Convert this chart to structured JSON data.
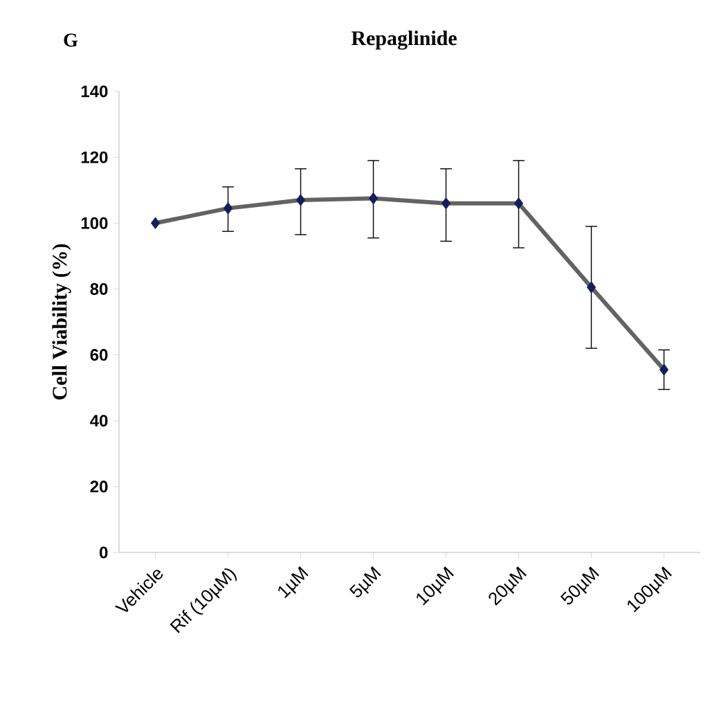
{
  "chart_data": {
    "type": "line",
    "title": "Repaglinide",
    "annotations": [
      "G"
    ],
    "ylabel": "Cell  Viability  (%)",
    "categories": [
      "Vehicle",
      "Rif (10µM)",
      "1µM",
      "5µM",
      "10µM",
      "20µM",
      "50µM",
      "100µM"
    ],
    "values": [
      100,
      104.5,
      107,
      107.5,
      106,
      106,
      80.5,
      55.5
    ],
    "errors": [
      null,
      [
        97.5,
        111
      ],
      [
        96.5,
        116.5
      ],
      [
        95.5,
        119
      ],
      [
        94.5,
        116.5
      ],
      [
        92.5,
        119
      ],
      [
        62,
        99
      ],
      [
        49.5,
        61.5
      ]
    ],
    "color": "#636363",
    "marker": "diamond",
    "line_style": "solid",
    "grid": false,
    "ylim": [
      0,
      140
    ],
    "yticks": [
      0,
      20,
      40,
      60,
      80,
      100,
      120,
      140
    ]
  }
}
